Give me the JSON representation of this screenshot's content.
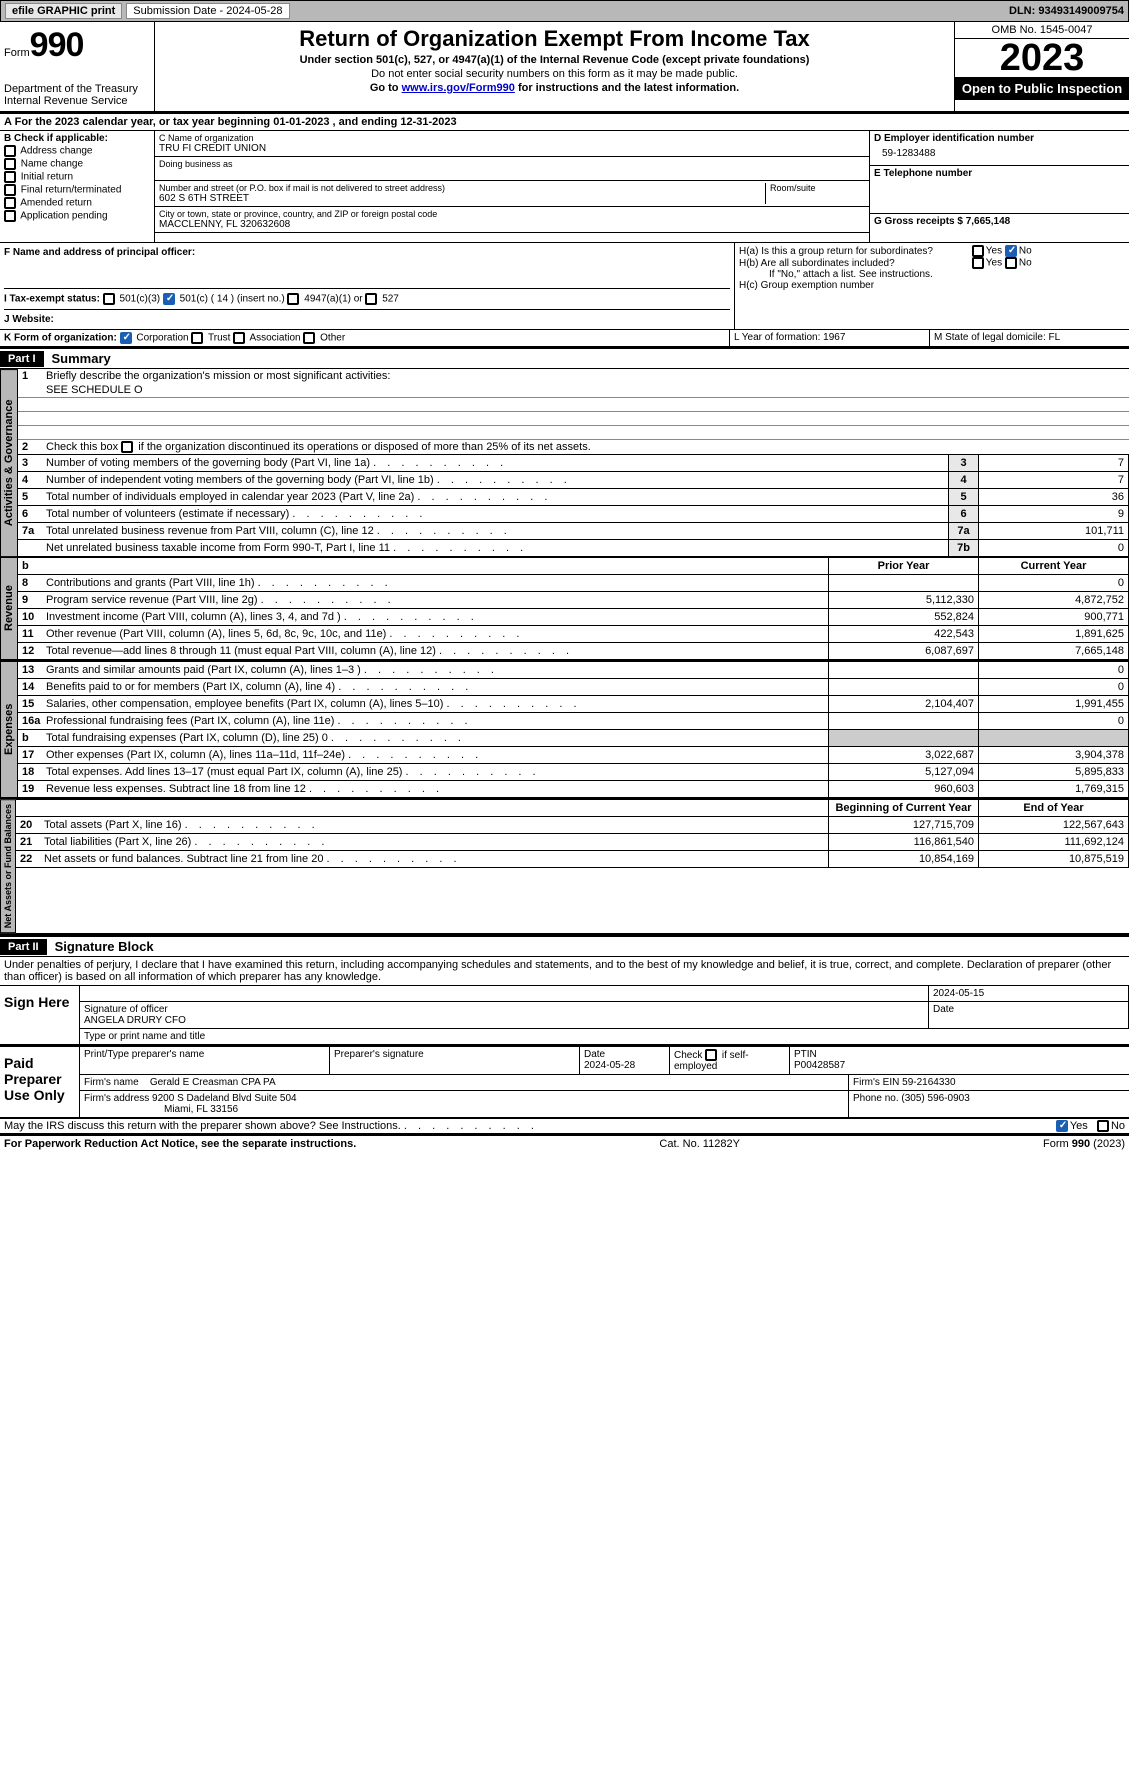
{
  "topbar": {
    "efile": "efile GRAPHIC print",
    "submission_label": "Submission Date - 2024-05-28",
    "dln_label": "DLN: 93493149009754"
  },
  "header": {
    "form_word": "Form",
    "form_num": "990",
    "dept": "Department of the Treasury Internal Revenue Service",
    "title": "Return of Organization Exempt From Income Tax",
    "sub": "Under section 501(c), 527, or 4947(a)(1) of the Internal Revenue Code (except private foundations)",
    "small1": "Do not enter social security numbers on this form as it may be made public.",
    "goto_prefix": "Go to ",
    "goto_link": "www.irs.gov/Form990",
    "goto_suffix": " for instructions and the latest information.",
    "omb": "OMB No. 1545-0047",
    "year": "2023",
    "open": "Open to Public Inspection"
  },
  "period": {
    "text": "For the 2023 calendar year, or tax year beginning 01-01-2023    , and ending 12-31-2023"
  },
  "boxB": {
    "label": "B Check if applicable:",
    "items": [
      "Address change",
      "Name change",
      "Initial return",
      "Final return/terminated",
      "Amended return",
      "Application pending"
    ]
  },
  "boxC": {
    "name_label": "C Name of organization",
    "name": "TRU FI CREDIT UNION",
    "dba_label": "Doing business as",
    "addr_label": "Number and street (or P.O. box if mail is not delivered to street address)",
    "addr": "602 S 6TH STREET",
    "room_label": "Room/suite",
    "city_label": "City or town, state or province, country, and ZIP or foreign postal code",
    "city": "MACCLENNY, FL  320632608"
  },
  "boxD": {
    "label": "D Employer identification number",
    "value": "59-1283488"
  },
  "boxE": {
    "label": "E Telephone number"
  },
  "boxG": {
    "label": "G Gross receipts $ 7,665,148"
  },
  "boxF": {
    "label": "F  Name and address of principal officer:"
  },
  "boxH": {
    "a": "H(a)  Is this a group return for subordinates?",
    "b": "H(b)  Are all subordinates included?",
    "no_note": "If \"No,\" attach a list. See instructions.",
    "c": "H(c)  Group exemption number",
    "yes": "Yes",
    "no": "No"
  },
  "boxI": {
    "label": "I  Tax-exempt status:",
    "opt1": "501(c)(3)",
    "opt2": "501(c) ( 14 ) (insert no.)",
    "opt3": "4947(a)(1) or",
    "opt4": "527"
  },
  "boxJ": {
    "label": "J  Website:"
  },
  "boxK": {
    "label": "K Form of organization:",
    "corp": "Corporation",
    "trust": "Trust",
    "assoc": "Association",
    "other": "Other"
  },
  "boxL": {
    "label": "L Year of formation: 1967"
  },
  "boxM": {
    "label": "M State of legal domicile: FL"
  },
  "part1": {
    "hdr": "Part I",
    "title": "Summary"
  },
  "tabs": {
    "gov": "Activities & Governance",
    "rev": "Revenue",
    "exp": "Expenses",
    "net": "Net Assets or Fund Balances"
  },
  "gov": {
    "l1": "Briefly describe the organization's mission or most significant activities:",
    "l1v": "SEE SCHEDULE O",
    "l2": "Check this box         if the organization discontinued its operations or disposed of more than 25% of its net assets.",
    "rows": [
      {
        "n": "3",
        "t": "Number of voting members of the governing body (Part VI, line 1a)",
        "b": "3",
        "v": "7"
      },
      {
        "n": "4",
        "t": "Number of independent voting members of the governing body (Part VI, line 1b)",
        "b": "4",
        "v": "7"
      },
      {
        "n": "5",
        "t": "Total number of individuals employed in calendar year 2023 (Part V, line 2a)",
        "b": "5",
        "v": "36"
      },
      {
        "n": "6",
        "t": "Total number of volunteers (estimate if necessary)",
        "b": "6",
        "v": "9"
      },
      {
        "n": "7a",
        "t": "Total unrelated business revenue from Part VIII, column (C), line 12",
        "b": "7a",
        "v": "101,711"
      },
      {
        "n": "",
        "t": "Net unrelated business taxable income from Form 990-T, Part I, line 11",
        "b": "7b",
        "v": "0"
      }
    ]
  },
  "cols": {
    "prior": "Prior Year",
    "current": "Current Year",
    "boy": "Beginning of Current Year",
    "eoy": "End of Year"
  },
  "rev": [
    {
      "n": "8",
      "t": "Contributions and grants (Part VIII, line 1h)",
      "p": "",
      "c": "0"
    },
    {
      "n": "9",
      "t": "Program service revenue (Part VIII, line 2g)",
      "p": "5,112,330",
      "c": "4,872,752"
    },
    {
      "n": "10",
      "t": "Investment income (Part VIII, column (A), lines 3, 4, and 7d )",
      "p": "552,824",
      "c": "900,771"
    },
    {
      "n": "11",
      "t": "Other revenue (Part VIII, column (A), lines 5, 6d, 8c, 9c, 10c, and 11e)",
      "p": "422,543",
      "c": "1,891,625"
    },
    {
      "n": "12",
      "t": "Total revenue—add lines 8 through 11 (must equal Part VIII, column (A), line 12)",
      "p": "6,087,697",
      "c": "7,665,148"
    }
  ],
  "exp": [
    {
      "n": "13",
      "t": "Grants and similar amounts paid (Part IX, column (A), lines 1–3 )",
      "p": "",
      "c": "0"
    },
    {
      "n": "14",
      "t": "Benefits paid to or for members (Part IX, column (A), line 4)",
      "p": "",
      "c": "0"
    },
    {
      "n": "15",
      "t": "Salaries, other compensation, employee benefits (Part IX, column (A), lines 5–10)",
      "p": "2,104,407",
      "c": "1,991,455"
    },
    {
      "n": "16a",
      "t": "Professional fundraising fees (Part IX, column (A), line 11e)",
      "p": "",
      "c": "0"
    },
    {
      "n": "b",
      "t": "Total fundraising expenses (Part IX, column (D), line 25) 0",
      "p": "grey",
      "c": "grey"
    },
    {
      "n": "17",
      "t": "Other expenses (Part IX, column (A), lines 11a–11d, 11f–24e)",
      "p": "3,022,687",
      "c": "3,904,378"
    },
    {
      "n": "18",
      "t": "Total expenses. Add lines 13–17 (must equal Part IX, column (A), line 25)",
      "p": "5,127,094",
      "c": "5,895,833"
    },
    {
      "n": "19",
      "t": "Revenue less expenses. Subtract line 18 from line 12",
      "p": "960,603",
      "c": "1,769,315"
    }
  ],
  "net": [
    {
      "n": "20",
      "t": "Total assets (Part X, line 16)",
      "p": "127,715,709",
      "c": "122,567,643"
    },
    {
      "n": "21",
      "t": "Total liabilities (Part X, line 26)",
      "p": "116,861,540",
      "c": "111,692,124"
    },
    {
      "n": "22",
      "t": "Net assets or fund balances. Subtract line 21 from line 20",
      "p": "10,854,169",
      "c": "10,875,519"
    }
  ],
  "part2": {
    "hdr": "Part II",
    "title": "Signature Block"
  },
  "declare": "Under penalties of perjury, I declare that I have examined this return, including accompanying schedules and statements, and to the best of my knowledge and belief, it is true, correct, and complete. Declaration of preparer (other than officer) is based on all information of which preparer has any knowledge.",
  "sign": {
    "here": "Sign Here",
    "sig_officer": "Signature of officer",
    "officer": "ANGELA DRURY CFO",
    "type_name": "Type or print name and title",
    "date_label": "Date",
    "date": "2024-05-15"
  },
  "paid": {
    "label": "Paid Preparer Use Only",
    "print_name": "Print/Type preparer's name",
    "prep_sig": "Preparer's signature",
    "date_l": "Date",
    "date": "2024-05-28",
    "check_self": "Check        if self-employed",
    "ptin_l": "PTIN",
    "ptin": "P00428587",
    "firm_name_l": "Firm's name",
    "firm_name": "Gerald E Creasman CPA PA",
    "firm_ein_l": "Firm's EIN",
    "firm_ein": "59-2164330",
    "firm_addr_l": "Firm's address",
    "firm_addr": "9200 S Dadeland Blvd Suite 504",
    "firm_addr2": "Miami, FL  33156",
    "phone_l": "Phone no.",
    "phone": "(305) 596-0903"
  },
  "discuss": {
    "text": "May the IRS discuss this return with the preparer shown above? See Instructions.",
    "yes": "Yes",
    "no": "No"
  },
  "footer": {
    "left": "For Paperwork Reduction Act Notice, see the separate instructions.",
    "mid": "Cat. No. 11282Y",
    "right_prefix": "Form ",
    "right_form": "990",
    "right_suffix": " (2023)"
  }
}
